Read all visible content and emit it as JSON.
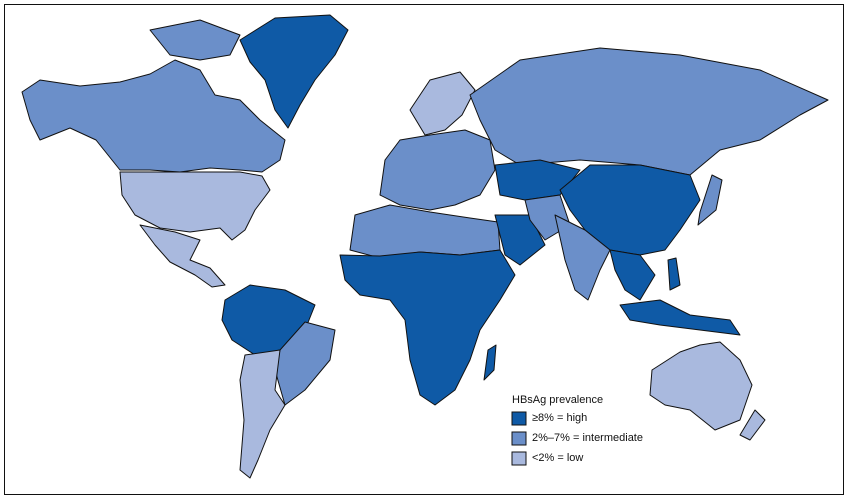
{
  "legend": {
    "title": "HBsAg prevalence",
    "items": [
      {
        "label": "≥8% = high",
        "color": "#0f5aa6"
      },
      {
        "label": "2%–7% = intermediate",
        "color": "#6b8fc9"
      },
      {
        "label": "<2% = low",
        "color": "#a9b9de"
      }
    ]
  }
}
